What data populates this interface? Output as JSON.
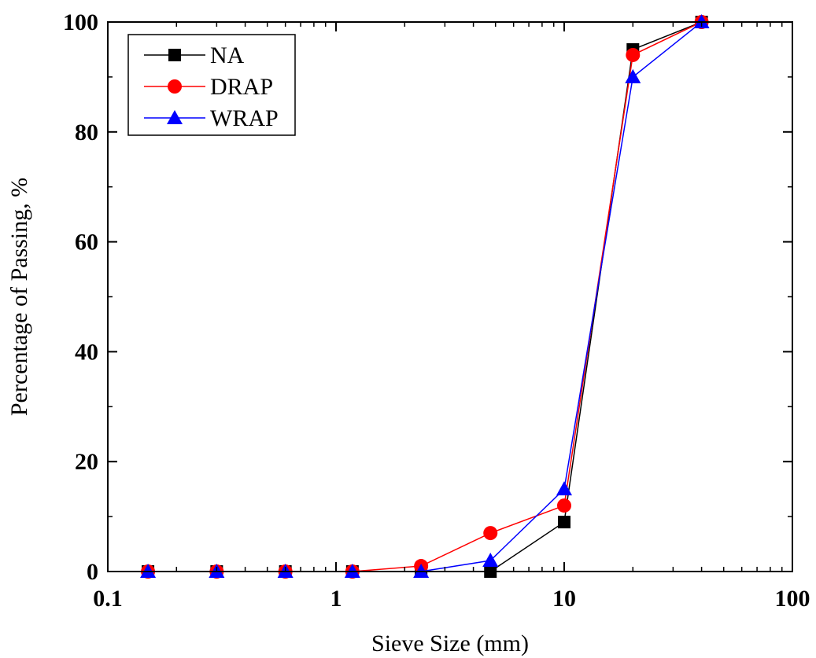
{
  "chart_data": {
    "type": "line",
    "x_scale": "log",
    "xlabel": "Sieve Size (mm)",
    "ylabel": "Percentage of Passing, %",
    "xlim": [
      0.1,
      100
    ],
    "ylim": [
      0,
      100
    ],
    "x_ticks": [
      0.1,
      1,
      10,
      100
    ],
    "x_tick_labels": [
      "0.1",
      "1",
      "10",
      "100"
    ],
    "y_ticks": [
      0,
      20,
      40,
      60,
      80,
      100
    ],
    "y_tick_labels": [
      "0",
      "20",
      "40",
      "60",
      "80",
      "100"
    ],
    "grid": false,
    "legend_position": "top-left",
    "x": [
      0.15,
      0.3,
      0.6,
      1.18,
      2.36,
      4.75,
      10,
      20,
      40
    ],
    "series": [
      {
        "name": "NA",
        "color": "#000000",
        "marker": "square",
        "values": [
          0,
          0,
          0,
          0,
          0,
          0,
          9,
          95,
          100
        ]
      },
      {
        "name": "DRAP",
        "color": "#ff0000",
        "marker": "circle",
        "values": [
          0,
          0,
          0,
          0,
          1,
          7,
          12,
          94,
          100
        ]
      },
      {
        "name": "WRAP",
        "color": "#0000ff",
        "marker": "triangle",
        "values": [
          0,
          0,
          0,
          0,
          0,
          2,
          15,
          90,
          100
        ]
      }
    ]
  }
}
